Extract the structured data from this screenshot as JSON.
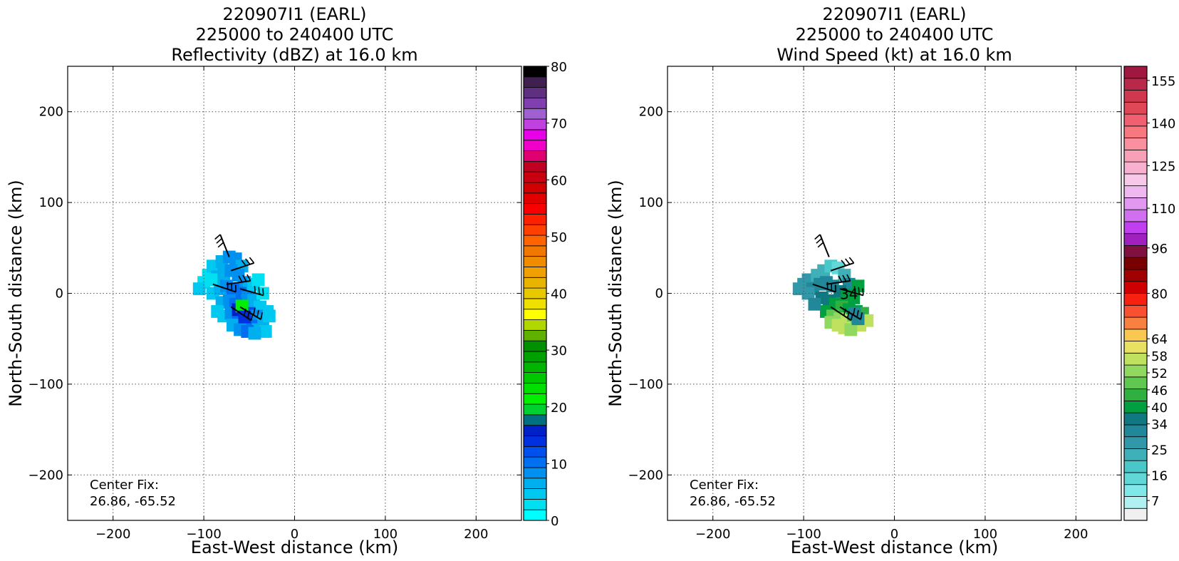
{
  "chart_data": [
    {
      "type": "heatmap",
      "title_lines": [
        "220907I1 (EARL)",
        "225000 to 240400 UTC",
        "Reflectivity (dBZ) at 16.0 km"
      ],
      "xlabel": "East-West distance (km)",
      "ylabel": "North-South distance (km)",
      "xlim": [
        -250,
        250
      ],
      "ylim": [
        -250,
        250
      ],
      "xticks": [
        -200,
        -100,
        0,
        100,
        200
      ],
      "yticks": [
        -200,
        -100,
        0,
        100,
        200
      ],
      "grid": true,
      "annotation": [
        "Center Fix:",
        "26.86, -65.52"
      ],
      "colorbar": {
        "min": 0,
        "max": 80,
        "tick_labels": [
          "0",
          "10",
          "20",
          "30",
          "40",
          "50",
          "60",
          "70",
          "80"
        ],
        "tick_values": [
          0,
          10,
          20,
          30,
          40,
          50,
          60,
          70,
          80
        ],
        "colors": [
          "#00ffff",
          "#00e0f0",
          "#00c8f0",
          "#00b0ee",
          "#0090f0",
          "#0070f0",
          "#0050f0",
          "#0030e0",
          "#0020c8",
          "#007080",
          "#00d030",
          "#00f000",
          "#00e000",
          "#00c800",
          "#00b400",
          "#00a000",
          "#009000",
          "#60b000",
          "#b0d800",
          "#ffff00",
          "#f0e000",
          "#e8c800",
          "#e8b400",
          "#f0a000",
          "#f08c00",
          "#f07800",
          "#ff6400",
          "#ff4000",
          "#ff2000",
          "#f80000",
          "#e00000",
          "#d00000",
          "#c80010",
          "#c00020",
          "#e00070",
          "#f000c8",
          "#e800e8",
          "#c040e0",
          "#a060d0",
          "#8040b0",
          "#603080",
          "#402050",
          "#000000"
        ]
      },
      "field": {
        "value_unit": "dBZ",
        "cells": [
          [
            -100,
            12,
            3
          ],
          [
            -105,
            5,
            4
          ],
          [
            -95,
            20,
            2
          ],
          [
            -90,
            30,
            5
          ],
          [
            -80,
            35,
            6
          ],
          [
            -72,
            40,
            8
          ],
          [
            -65,
            38,
            9
          ],
          [
            -58,
            30,
            7
          ],
          [
            -85,
            18,
            6
          ],
          [
            -78,
            22,
            7
          ],
          [
            -70,
            25,
            8
          ],
          [
            -62,
            20,
            9
          ],
          [
            -55,
            12,
            8
          ],
          [
            -50,
            5,
            6
          ],
          [
            -45,
            10,
            4
          ],
          [
            -90,
            0,
            5
          ],
          [
            -82,
            5,
            7
          ],
          [
            -75,
            8,
            9
          ],
          [
            -68,
            5,
            10
          ],
          [
            -60,
            0,
            11
          ],
          [
            -52,
            -5,
            9
          ],
          [
            -45,
            -8,
            7
          ],
          [
            -38,
            -15,
            5
          ],
          [
            -30,
            -20,
            4
          ],
          [
            -80,
            -10,
            6
          ],
          [
            -72,
            -8,
            8
          ],
          [
            -65,
            -12,
            11
          ],
          [
            -58,
            -18,
            13
          ],
          [
            -50,
            -22,
            12
          ],
          [
            -42,
            -25,
            9
          ],
          [
            -35,
            -30,
            6
          ],
          [
            -28,
            -25,
            4
          ],
          [
            -78,
            -25,
            5
          ],
          [
            -70,
            -22,
            8
          ],
          [
            -62,
            -28,
            11
          ],
          [
            -55,
            -32,
            12
          ],
          [
            -48,
            -36,
            10
          ],
          [
            -40,
            -40,
            7
          ],
          [
            -32,
            -42,
            5
          ],
          [
            -68,
            -35,
            6
          ],
          [
            -60,
            -40,
            9
          ],
          [
            -52,
            -42,
            10
          ],
          [
            -44,
            -44,
            7
          ],
          [
            -62,
            -18,
            16
          ],
          [
            -58,
            -14,
            22
          ],
          [
            -55,
            -26,
            14
          ],
          [
            -85,
            -20,
            4
          ],
          [
            -92,
            15,
            3
          ],
          [
            -40,
            15,
            3
          ],
          [
            -35,
            0,
            3
          ]
        ]
      },
      "barbs": [
        {
          "x": -72,
          "y": 40,
          "u": -10,
          "v": 25
        },
        {
          "x": -70,
          "y": 25,
          "u": 30,
          "v": 10
        },
        {
          "x": -90,
          "y": 10,
          "u": 15,
          "v": -5
        },
        {
          "x": -75,
          "y": 10,
          "u": 35,
          "v": 5
        },
        {
          "x": -60,
          "y": 5,
          "u": 35,
          "v": -10
        },
        {
          "x": -70,
          "y": -15,
          "u": 30,
          "v": -20
        },
        {
          "x": -60,
          "y": -15,
          "u": 25,
          "v": -15
        }
      ]
    },
    {
      "type": "heatmap",
      "title_lines": [
        "220907I1 (EARL)",
        "225000 to 240400 UTC",
        "Wind Speed (kt) at 16.0 km"
      ],
      "xlabel": "East-West distance (km)",
      "ylabel": "North-South distance (km)",
      "xlim": [
        -250,
        250
      ],
      "ylim": [
        -250,
        250
      ],
      "xticks": [
        -200,
        -100,
        0,
        100,
        200
      ],
      "yticks": [
        -200,
        -100,
        0,
        100,
        200
      ],
      "grid": true,
      "annotation": [
        "Center Fix:",
        "26.86, -65.52"
      ],
      "contour_label": {
        "text": "34",
        "x": -50,
        "y": 0
      },
      "colorbar": {
        "min": 0,
        "max": 160,
        "tick_labels": [
          "7",
          "16",
          "25",
          "34",
          "40",
          "46",
          "52",
          "58",
          "64",
          "80",
          "96",
          "110",
          "125",
          "140",
          "155"
        ],
        "tick_values": [
          7,
          16,
          25,
          34,
          40,
          46,
          52,
          58,
          64,
          80,
          96,
          110,
          125,
          140,
          155
        ],
        "colors": [
          "#f0f0f0",
          "#b0f0f0",
          "#80e8e8",
          "#60d8d8",
          "#48c8c8",
          "#40b0b8",
          "#3098a8",
          "#208898",
          "#107880",
          "#00a040",
          "#30b040",
          "#60c850",
          "#90d860",
          "#c0e060",
          "#e8e060",
          "#f8c850",
          "#f88040",
          "#f85030",
          "#f82010",
          "#d00000",
          "#a00000",
          "#780000",
          "#801040",
          "#a020c0",
          "#c040f0",
          "#d070f0",
          "#e098f0",
          "#f0b8f0",
          "#f8c8e8",
          "#f8b0d0",
          "#f8a0b8",
          "#f890a0",
          "#f87880",
          "#f06070",
          "#e04858",
          "#d03850",
          "#b82848",
          "#a01840"
        ]
      },
      "field": {
        "value_unit": "kt",
        "cells": [
          [
            -100,
            10,
            28
          ],
          [
            -105,
            5,
            27
          ],
          [
            -95,
            15,
            26
          ],
          [
            -85,
            20,
            25
          ],
          [
            -78,
            25,
            22
          ],
          [
            -70,
            30,
            18
          ],
          [
            -62,
            28,
            16
          ],
          [
            -55,
            20,
            25
          ],
          [
            -50,
            10,
            30
          ],
          [
            -90,
            5,
            30
          ],
          [
            -82,
            10,
            32
          ],
          [
            -75,
            12,
            33
          ],
          [
            -68,
            8,
            30
          ],
          [
            -60,
            2,
            36
          ],
          [
            -52,
            -2,
            40
          ],
          [
            -45,
            -5,
            42
          ],
          [
            -80,
            -5,
            34
          ],
          [
            -72,
            -8,
            36
          ],
          [
            -65,
            -12,
            40
          ],
          [
            -58,
            -15,
            44
          ],
          [
            -50,
            -18,
            42
          ],
          [
            -42,
            -20,
            40
          ],
          [
            -35,
            -22,
            44
          ],
          [
            -75,
            -20,
            38
          ],
          [
            -68,
            -25,
            48
          ],
          [
            -60,
            -28,
            54
          ],
          [
            -52,
            -30,
            56
          ],
          [
            -45,
            -32,
            50
          ],
          [
            -38,
            -35,
            56
          ],
          [
            -30,
            -30,
            58
          ],
          [
            -70,
            -32,
            52
          ],
          [
            -62,
            -35,
            56
          ],
          [
            -55,
            -38,
            58
          ],
          [
            -48,
            -40,
            54
          ],
          [
            -40,
            -28,
            30
          ],
          [
            -44,
            -22,
            30
          ],
          [
            -95,
            0,
            28
          ],
          [
            -88,
            -12,
            30
          ],
          [
            -40,
            8,
            38
          ]
        ]
      },
      "barbs": [
        {
          "x": -72,
          "y": 40,
          "u": -10,
          "v": 25
        },
        {
          "x": -70,
          "y": 25,
          "u": 30,
          "v": 10
        },
        {
          "x": -90,
          "y": 10,
          "u": 15,
          "v": -5
        },
        {
          "x": -75,
          "y": 10,
          "u": 35,
          "v": 5
        },
        {
          "x": -60,
          "y": 5,
          "u": 35,
          "v": -10
        },
        {
          "x": -70,
          "y": -15,
          "u": 30,
          "v": -20
        },
        {
          "x": -60,
          "y": -15,
          "u": 25,
          "v": -15
        }
      ]
    }
  ]
}
